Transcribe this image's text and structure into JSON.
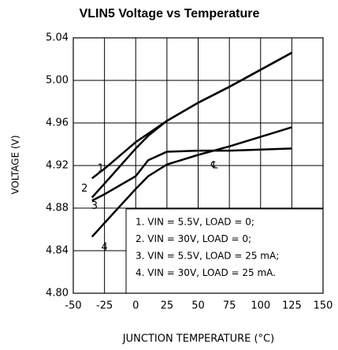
{
  "chart_data": {
    "type": "line",
    "title": "VLIN5 Voltage vs Temperature",
    "x_label": "JUNCTION TEMPERATURE (°C)",
    "y_label": "VOLTAGE (V)",
    "x": [
      -35,
      -25,
      0,
      10,
      25,
      50,
      75,
      100,
      125
    ],
    "series": [
      {
        "name": "1. VIN = 5.5V, LOAD = 0;",
        "color": "#000000",
        "values": [
          4.908,
          4.917,
          4.942,
          4.95,
          4.962,
          4.979,
          4.994,
          5.01,
          5.026
        ]
      },
      {
        "name": "2. VIN = 30V, LOAD = 0;",
        "color": "#000000",
        "values": [
          4.89,
          4.903,
          4.936,
          4.948,
          4.962,
          4.979,
          4.994,
          5.01,
          5.026
        ]
      },
      {
        "name": "3. VIN = 5.5V, LOAD = 25 mA;",
        "color": "#000000",
        "values": [
          4.887,
          4.893,
          4.91,
          4.925,
          4.933,
          4.934,
          4.934,
          4.935,
          4.936
        ]
      },
      {
        "name": "4. VIN = 30V, LOAD = 25 mA.",
        "color": "#000000",
        "values": [
          4.853,
          4.866,
          4.898,
          4.91,
          4.921,
          4.93,
          4.938,
          4.947,
          4.956
        ]
      }
    ],
    "curve_labels": [
      "1",
      "2",
      "3",
      "4"
    ],
    "annotation": "℄",
    "xlim": [
      -50,
      150
    ],
    "xticks": [
      -50,
      -25,
      0,
      25,
      50,
      75,
      100,
      125,
      150
    ],
    "ylim": [
      4.8,
      5.04
    ],
    "yticks": [
      {
        "value": 4.8,
        "label": "4.80"
      },
      4.84,
      4.88,
      4.92,
      4.96,
      {
        "value": 5,
        "label": "5.00"
      },
      5.04
    ],
    "grid": true
  }
}
